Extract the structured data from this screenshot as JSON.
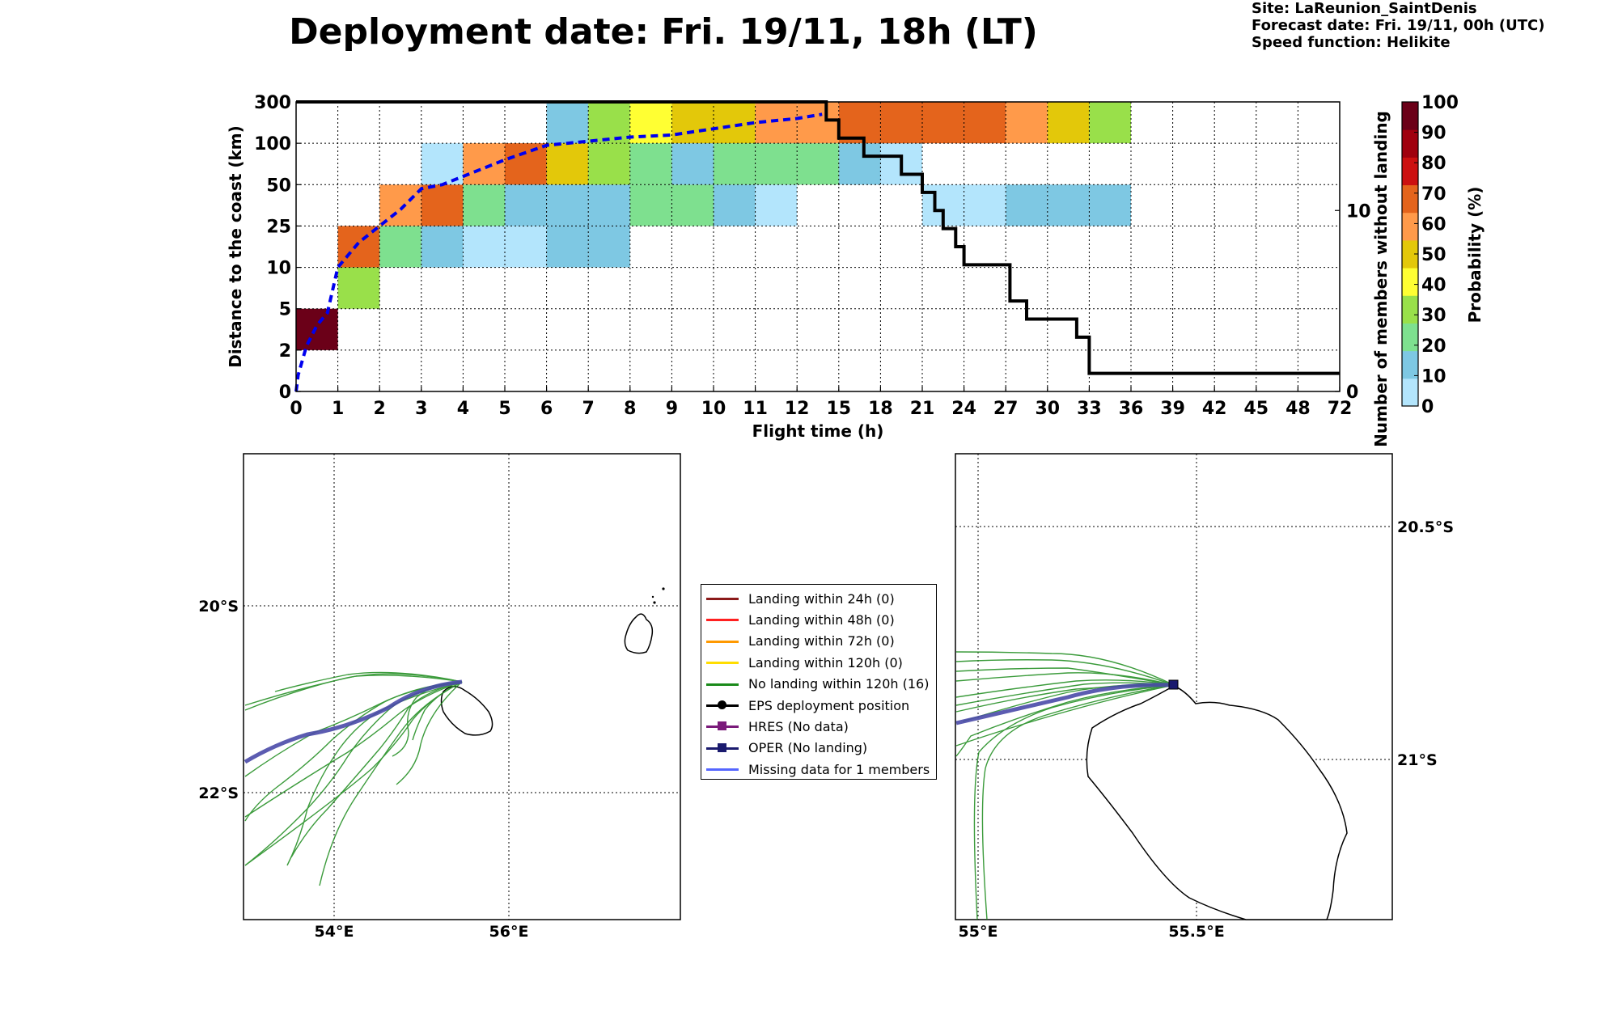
{
  "header": {
    "title": "Deployment date: Fri. 19/11, 18h (LT)",
    "site": "Site: LaReunion_SaintDenis",
    "forecast": "Forecast date: Fri. 19/11, 00h (UTC)",
    "speed": "Speed function: Helikite"
  },
  "chart_data": [
    {
      "type": "heatmap",
      "title": "",
      "xlabel": "Flight time (h)",
      "ylabel": "Distance to the coast (km)",
      "y2label": "Number of members without landing",
      "colorbar_label": "Probability (%)",
      "x_ticks": [
        "0",
        "1",
        "2",
        "3",
        "4",
        "5",
        "6",
        "7",
        "8",
        "9",
        "10",
        "11",
        "12",
        "15",
        "18",
        "21",
        "24",
        "27",
        "30",
        "33",
        "36",
        "39",
        "42",
        "45",
        "48",
        "72"
      ],
      "y_ticks": [
        "0",
        "2",
        "5",
        "10",
        "25",
        "50",
        "100",
        "300"
      ],
      "y2_ticks": [
        "0",
        "10"
      ],
      "colorbar_ticks": [
        "0",
        "10",
        "20",
        "30",
        "40",
        "50",
        "60",
        "70",
        "80",
        "90",
        "100"
      ],
      "colorbar_colors": [
        "#b3e5fc",
        "#7ec8e3",
        "#7ee08f",
        "#99e04a",
        "#ffff33",
        "#e3c80a",
        "#ff9a4a",
        "#e4641c",
        "#cc1010",
        "#a0000e",
        "#6b0018"
      ],
      "grid": true,
      "cells_note": "each cell is [x_index_start, x_index_end, y_index_start, y_index_end, probability_bin]",
      "cells": [
        [
          0,
          1,
          1,
          2,
          10
        ],
        [
          1,
          2,
          2,
          3,
          3
        ],
        [
          1,
          2,
          3,
          4,
          7
        ],
        [
          2,
          3,
          3,
          4,
          2
        ],
        [
          2,
          3,
          4,
          5,
          6
        ],
        [
          3,
          4,
          3,
          4,
          1
        ],
        [
          3,
          4,
          4,
          5,
          7
        ],
        [
          3,
          4,
          5,
          6,
          0
        ],
        [
          4,
          5,
          3,
          4,
          0
        ],
        [
          4,
          5,
          4,
          5,
          2
        ],
        [
          4,
          5,
          5,
          6,
          6
        ],
        [
          5,
          6,
          3,
          4,
          0
        ],
        [
          5,
          6,
          4,
          5,
          1
        ],
        [
          5,
          6,
          5,
          6,
          7
        ],
        [
          6,
          7,
          3,
          4,
          1
        ],
        [
          6,
          7,
          4,
          5,
          1
        ],
        [
          6,
          7,
          5,
          6,
          5
        ],
        [
          6,
          7,
          6,
          7,
          1
        ],
        [
          7,
          8,
          3,
          4,
          1
        ],
        [
          7,
          8,
          4,
          5,
          1
        ],
        [
          7,
          8,
          5,
          6,
          3
        ],
        [
          7,
          8,
          6,
          7,
          3
        ],
        [
          8,
          9,
          4,
          5,
          2
        ],
        [
          8,
          9,
          5,
          6,
          2
        ],
        [
          8,
          9,
          6,
          7,
          4
        ],
        [
          9,
          10,
          4,
          5,
          2
        ],
        [
          9,
          10,
          5,
          6,
          1
        ],
        [
          9,
          10,
          6,
          7,
          5
        ],
        [
          10,
          11,
          4,
          5,
          1
        ],
        [
          10,
          11,
          5,
          6,
          2
        ],
        [
          10,
          11,
          6,
          7,
          5
        ],
        [
          11,
          12,
          4,
          5,
          0
        ],
        [
          11,
          12,
          5,
          6,
          2
        ],
        [
          11,
          12,
          6,
          7,
          6
        ],
        [
          12,
          13,
          5,
          6,
          2
        ],
        [
          12,
          13,
          6,
          7,
          6
        ],
        [
          13,
          14,
          5,
          6,
          1
        ],
        [
          13,
          14,
          6,
          7,
          7
        ],
        [
          14,
          15,
          5,
          6,
          0
        ],
        [
          14,
          15,
          6,
          7,
          7
        ],
        [
          15,
          16,
          4,
          5,
          0
        ],
        [
          15,
          16,
          6,
          7,
          7
        ],
        [
          16,
          17,
          4,
          5,
          0
        ],
        [
          16,
          17,
          6,
          7,
          7
        ],
        [
          17,
          18,
          4,
          5,
          1
        ],
        [
          17,
          18,
          6,
          7,
          6
        ],
        [
          18,
          19,
          4,
          5,
          1
        ],
        [
          18,
          19,
          6,
          7,
          5
        ],
        [
          19,
          20,
          4,
          5,
          1
        ],
        [
          19,
          20,
          6,
          7,
          3
        ]
      ],
      "series": [
        {
          "name": "",
          "axis": "left",
          "style": "dashed",
          "color": "#0000ee",
          "x_pos": [
            0,
            0.05,
            0.25,
            0.5,
            0.75,
            1,
            1.5,
            2,
            2.5,
            3,
            3.5,
            4,
            5,
            6,
            7,
            8,
            9,
            10,
            11,
            12,
            12.6
          ],
          "y_pos": [
            0,
            0.4,
            1.1,
            1.6,
            1.9,
            3.0,
            3.6,
            4.0,
            4.4,
            4.9,
            5.0,
            5.2,
            5.6,
            5.95,
            6.05,
            6.15,
            6.2,
            6.35,
            6.5,
            6.6,
            6.7
          ]
        },
        {
          "name": "",
          "axis": "right",
          "style": "step",
          "color": "#000000",
          "x_pos": [
            0,
            12.6,
            12.7,
            12.8,
            13.0,
            13.6,
            14.5,
            15.0,
            15.3,
            15.5,
            15.8,
            16.0,
            16.2,
            17.1,
            17.5,
            17.8,
            18.7,
            19.0,
            19.3
          ],
          "members": [
            16,
            16,
            15,
            15,
            14,
            13,
            12,
            11,
            10,
            9,
            8,
            7,
            7,
            5,
            4,
            4,
            3,
            1,
            1
          ]
        }
      ],
      "y2_ylim": [
        0,
        16
      ]
    },
    {
      "type": "map",
      "title": "",
      "xtick_labels": [
        "54°E",
        "56°E"
      ],
      "ytick_labels": [
        "20°S",
        "22°S"
      ],
      "trajectories": 16,
      "legend": [
        {
          "label": "Landing within 24h (0)",
          "color": "#8b1a1a",
          "marker": "none"
        },
        {
          "label": "Landing within 48h (0)",
          "color": "#ff2020",
          "marker": "none"
        },
        {
          "label": "Landing within 72h (0)",
          "color": "#ff9900",
          "marker": "none"
        },
        {
          "label": "Landing within 120h (0)",
          "color": "#ffdd00",
          "marker": "none"
        },
        {
          "label": "No landing within 120h (16)",
          "color": "#1a8a1a",
          "marker": "none"
        },
        {
          "label": "EPS deployment position",
          "color": "#000000",
          "marker": "circle"
        },
        {
          "label": "HRES (No data)",
          "color": "#7a1a7a",
          "marker": "square"
        },
        {
          "label": "OPER (No landing)",
          "color": "#1a1a6e",
          "marker": "square"
        },
        {
          "label": "Missing data for 1 members",
          "color": "#5566ff",
          "marker": "none"
        }
      ]
    },
    {
      "type": "map",
      "title": "",
      "xtick_labels": [
        "55°E",
        "55.5°E"
      ],
      "ytick_labels": [
        "20.5°S",
        "21°S"
      ]
    }
  ]
}
